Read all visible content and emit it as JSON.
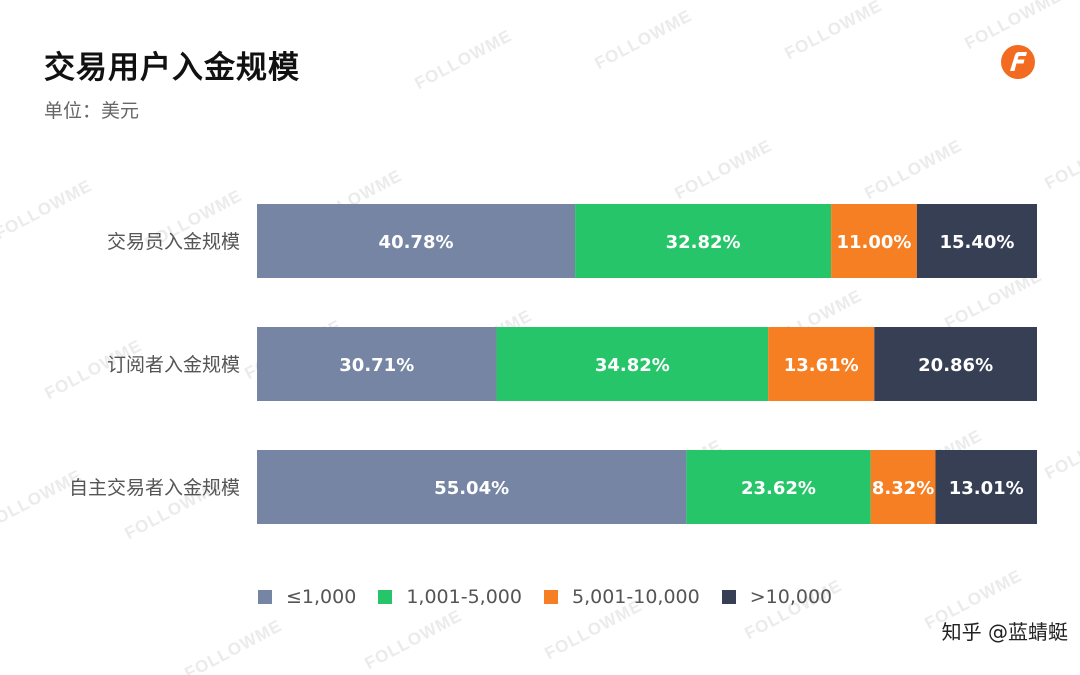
{
  "header": {
    "title": "交易用户入金规模",
    "unit": "单位：美元"
  },
  "watermark": "FOLLOWME",
  "credit": "知乎 @蓝蜻蜓",
  "colors": {
    "s1": "#7585a3",
    "s2": "#27c569",
    "s3": "#f67f24",
    "s4": "#363f54",
    "logo": "#f26b21"
  },
  "chart_data": {
    "type": "bar",
    "orientation": "horizontal",
    "stacked": true,
    "normalized": true,
    "categories": [
      "交易员入金规模",
      "订阅者入金规模",
      "自主交易者入金规模"
    ],
    "series": [
      {
        "name": "≤1,000",
        "values": [
          40.78,
          30.71,
          55.04
        ],
        "labels": [
          "40.78%",
          "30.71%",
          "55.04%"
        ]
      },
      {
        "name": "1,001-5,000",
        "values": [
          32.82,
          34.82,
          23.62
        ],
        "labels": [
          "32.82%",
          "34.82%",
          "23.62%"
        ]
      },
      {
        "name": "5,001-10,000",
        "values": [
          11.0,
          13.61,
          8.32
        ],
        "labels": [
          "11.00%",
          "13.61%",
          "8.32%"
        ]
      },
      {
        "name": ">10,000",
        "values": [
          15.4,
          20.86,
          13.01
        ],
        "labels": [
          "15.40%",
          "20.86%",
          "13.01%"
        ]
      }
    ],
    "legend_position": "bottom",
    "grid": false
  }
}
